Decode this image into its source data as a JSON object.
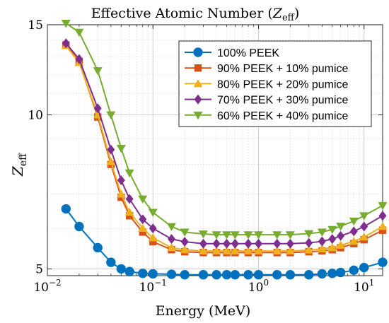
{
  "chart_data": {
    "type": "line",
    "title_main": "Effective Atomic Number (",
    "title_var": "Z",
    "title_sub": "eff",
    "title_close": ")",
    "xlabel": "Energy (MeV)",
    "ylabel_var": "Z",
    "ylabel_sub": "eff",
    "xscale": "log",
    "yscale": "log",
    "xlim": [
      0.01,
      15
    ],
    "ylim": [
      4.85,
      15
    ],
    "grid": true,
    "legend_position": "top-right",
    "x_tick_labels": [
      {
        "value": 0.01,
        "base": "10",
        "exp": "−2"
      },
      {
        "value": 0.1,
        "base": "10",
        "exp": "−1"
      },
      {
        "value": 1,
        "base": "10",
        "exp": "0"
      },
      {
        "value": 10,
        "base": "10",
        "exp": "1"
      }
    ],
    "y_tick_labels": [
      {
        "value": 5,
        "label": "5"
      },
      {
        "value": 10,
        "label": "10"
      },
      {
        "value": 15,
        "label": "15"
      }
    ],
    "x": [
      0.015,
      0.02,
      0.03,
      0.04,
      0.05,
      0.06,
      0.08,
      0.1,
      0.15,
      0.2,
      0.3,
      0.4,
      0.5,
      0.6,
      0.8,
      1,
      1.5,
      2,
      3,
      4,
      5,
      6,
      8,
      10,
      15
    ],
    "series": [
      {
        "name": "100% PEEK",
        "color": "#0072BD",
        "marker": "circle",
        "values": [
          6.55,
          6.05,
          5.5,
          5.15,
          5.0,
          4.94,
          4.9,
          4.89,
          4.88,
          4.87,
          4.87,
          4.87,
          4.87,
          4.87,
          4.87,
          4.87,
          4.87,
          4.87,
          4.87,
          4.89,
          4.9,
          4.92,
          4.97,
          5.03,
          5.15
        ]
      },
      {
        "name": "90% PEEK + 10% pumice",
        "color": "#D95319",
        "marker": "square",
        "values": [
          13.7,
          12.7,
          9.9,
          8.0,
          6.9,
          6.35,
          5.9,
          5.65,
          5.45,
          5.4,
          5.38,
          5.38,
          5.38,
          5.38,
          5.38,
          5.38,
          5.38,
          5.38,
          5.4,
          5.42,
          5.45,
          5.5,
          5.6,
          5.7,
          5.95
        ]
      },
      {
        "name": "80% PEEK + 20% pumice",
        "color": "#EDB120",
        "marker": "triangle-up",
        "values": [
          13.65,
          12.65,
          10.0,
          8.1,
          7.0,
          6.45,
          6.0,
          5.75,
          5.5,
          5.45,
          5.42,
          5.42,
          5.42,
          5.42,
          5.42,
          5.42,
          5.42,
          5.42,
          5.44,
          5.47,
          5.5,
          5.56,
          5.66,
          5.77,
          6.05
        ]
      },
      {
        "name": "70% PEEK + 30% pumice",
        "color": "#7E2F8E",
        "marker": "diamond",
        "values": [
          13.8,
          12.85,
          10.3,
          8.55,
          7.45,
          6.85,
          6.25,
          6.0,
          5.72,
          5.65,
          5.6,
          5.6,
          5.6,
          5.6,
          5.6,
          5.6,
          5.6,
          5.6,
          5.62,
          5.66,
          5.72,
          5.8,
          5.92,
          6.05,
          6.35
        ]
      },
      {
        "name": "60% PEEK + 40% pumice",
        "color": "#77AC30",
        "marker": "triangle-down",
        "values": [
          15.1,
          14.5,
          12.2,
          10.0,
          8.6,
          7.7,
          6.85,
          6.45,
          6.05,
          5.9,
          5.85,
          5.83,
          5.83,
          5.83,
          5.83,
          5.83,
          5.83,
          5.83,
          5.86,
          5.9,
          5.97,
          6.06,
          6.2,
          6.35,
          6.65
        ]
      }
    ]
  }
}
